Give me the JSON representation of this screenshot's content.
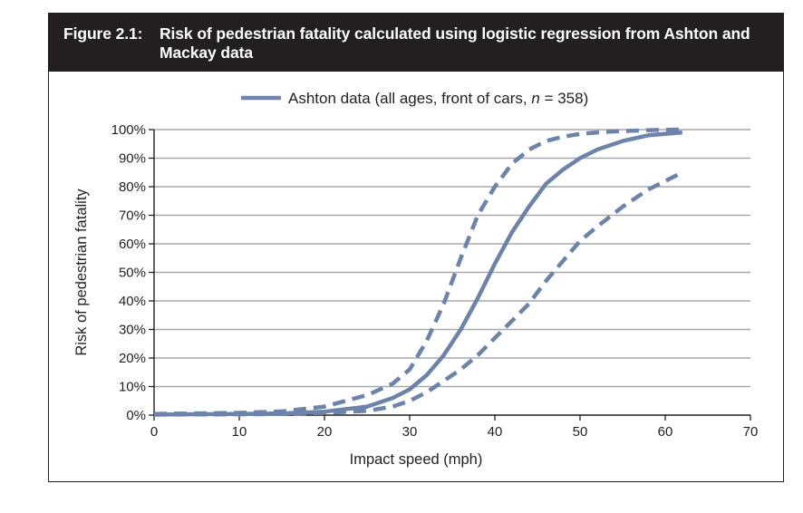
{
  "figure": {
    "label": "Figure 2.1:",
    "title": "Risk of pedestrian fatality calculated using logistic regression from Ashton and Mackay data"
  },
  "chart_data": {
    "type": "line",
    "xlabel": "Impact speed (mph)",
    "ylabel": "Risk of pedestrian fatality",
    "xlim": [
      0,
      70
    ],
    "ylim": [
      0,
      100
    ],
    "x_ticks": [
      "0",
      "10",
      "20",
      "30",
      "40",
      "50",
      "60",
      "70"
    ],
    "y_ticks": [
      "0%",
      "10%",
      "20%",
      "30%",
      "40%",
      "50%",
      "60%",
      "70%",
      "80%",
      "90%",
      "100%"
    ],
    "grid": "horizontal",
    "legend": {
      "position": "top-center",
      "text_prefix": "Ashton data (all ages, front of cars, ",
      "text_n_var": "n",
      "text_suffix": " = 358)"
    },
    "colors": {
      "series": "#6c84ab",
      "grid": "#a7a9ac",
      "axis": "#231f20",
      "header_bg": "#231f20"
    },
    "series": [
      {
        "name": "Ashton data (all ages, front of cars, n = 358)",
        "style": "solid",
        "x": [
          0,
          10,
          15,
          20,
          25,
          28,
          30,
          32,
          34,
          36,
          38,
          40,
          42,
          44,
          46,
          48,
          50,
          52,
          55,
          58,
          62
        ],
        "y": [
          0.2,
          0.4,
          0.6,
          1.2,
          3,
          6,
          9,
          14,
          21,
          30,
          41,
          53,
          64,
          73,
          81,
          86,
          90,
          93,
          96,
          98,
          99
        ]
      },
      {
        "style": "dashed",
        "x": [
          0,
          10,
          15,
          20,
          25,
          28,
          30,
          32,
          34,
          36,
          38,
          40,
          42,
          44,
          46,
          48,
          50,
          52,
          55,
          58,
          62
        ],
        "y": [
          0.4,
          0.8,
          1.3,
          3,
          7,
          11,
          16,
          26,
          39,
          55,
          70,
          80,
          88,
          93,
          96,
          97.5,
          98.5,
          99,
          99.5,
          99.8,
          100
        ]
      },
      {
        "style": "dashed",
        "x": [
          0,
          10,
          15,
          20,
          25,
          28,
          30,
          32,
          34,
          36,
          38,
          40,
          42,
          44,
          46,
          48,
          50,
          52,
          55,
          58,
          62
        ],
        "y": [
          0.2,
          0.3,
          0.4,
          0.8,
          1.5,
          3,
          5,
          8,
          12,
          16,
          21,
          27,
          33,
          39,
          47,
          54,
          61,
          66,
          73,
          79,
          85
        ]
      }
    ]
  }
}
